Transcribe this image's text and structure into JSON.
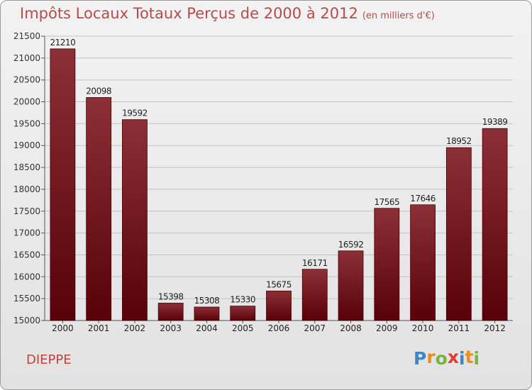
{
  "header": {
    "title": "Impôts Locaux Totaux Perçus de 2000 à 2012",
    "subtitle": "(en milliers d'€)"
  },
  "location": "DIEPPE",
  "logo": {
    "text": "Proxiti",
    "letters": [
      {
        "ch": "P",
        "color": "#3d87c8"
      },
      {
        "ch": "r",
        "color": "#f08c1a"
      },
      {
        "ch": "o",
        "color": "#7ab53a"
      },
      {
        "ch": "x",
        "color": "#e23b2e"
      },
      {
        "ch": "i",
        "color": "#3d87c8"
      },
      {
        "ch": "t",
        "color": "#f08c1a"
      },
      {
        "ch": "i",
        "color": "#7ab53a"
      }
    ]
  },
  "colors": {
    "bar_top": "#8a3036",
    "bar_bottom": "#5a0008",
    "title": "#b84a4a"
  },
  "chart_data": {
    "type": "bar",
    "categories": [
      "2000",
      "2001",
      "2002",
      "2003",
      "2004",
      "2005",
      "2006",
      "2007",
      "2008",
      "2009",
      "2010",
      "2011",
      "2012"
    ],
    "values": [
      21210,
      20098,
      19592,
      15398,
      15308,
      15330,
      15675,
      16171,
      16592,
      17565,
      17646,
      18952,
      19389
    ],
    "title": "Impôts Locaux Totaux Perçus de 2000 à 2012",
    "xlabel": "",
    "ylabel": "",
    "ylim": [
      15000,
      21500
    ],
    "yticks": [
      15000,
      15500,
      16000,
      16500,
      17000,
      17500,
      18000,
      18500,
      19000,
      19500,
      20000,
      20500,
      21000,
      21500
    ],
    "grid": true
  }
}
